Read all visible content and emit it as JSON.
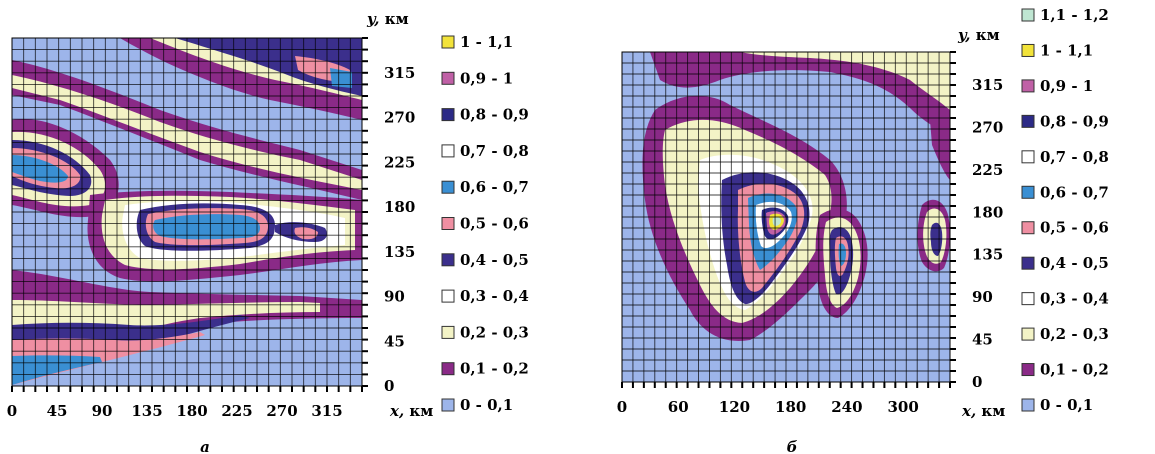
{
  "chart_data": [
    {
      "type": "heatmap",
      "panel_label": "а",
      "xlabel_var": "x,",
      "xlabel_unit": "км",
      "ylabel_var": "y,",
      "ylabel_unit": "км",
      "xlim": [
        0,
        350
      ],
      "ylim": [
        0,
        350
      ],
      "x_ticks": [
        "0",
        "45",
        "90",
        "135",
        "180",
        "225",
        "270",
        "315"
      ],
      "x_tick_values": [
        0,
        45,
        90,
        135,
        180,
        225,
        270,
        315
      ],
      "y_ticks": [
        "0",
        "45",
        "90",
        "135",
        "180",
        "225",
        "270",
        "315"
      ],
      "y_tick_values": [
        0,
        45,
        90,
        135,
        180,
        225,
        270,
        315
      ],
      "grid": true,
      "legend_position": "right",
      "legend": [
        {
          "label": "1 - 1,1",
          "color": "#f2e33a"
        },
        {
          "label": "0,9 - 1",
          "color": "#c060a6"
        },
        {
          "label": "0,8 - 0,9",
          "color": "#2c2a86"
        },
        {
          "label": "0,7 - 0,8",
          "color": "#ffffff"
        },
        {
          "label": "0,6 - 0,7",
          "color": "#3a8fd3"
        },
        {
          "label": "0,5 - 0,6",
          "color": "#ef8fa2"
        },
        {
          "label": "0,4 - 0,5",
          "color": "#3b2f8c"
        },
        {
          "label": "0,3 - 0,4",
          "color": "#ffffff"
        },
        {
          "label": "0,2 - 0,3",
          "color": "#f3f3c6"
        },
        {
          "label": "0,1 - 0,2",
          "color": "#8a2a87"
        },
        {
          "label": "0 - 0,1",
          "color": "#9db5ea"
        }
      ]
    },
    {
      "type": "heatmap",
      "panel_label": "б",
      "xlabel_var": "x,",
      "xlabel_unit": "км",
      "ylabel_var": "y,",
      "ylabel_unit": "км",
      "xlim": [
        0,
        350
      ],
      "ylim": [
        0,
        350
      ],
      "x_ticks": [
        "0",
        "60",
        "120",
        "180",
        "240",
        "300"
      ],
      "x_tick_values": [
        0,
        60,
        120,
        180,
        240,
        300
      ],
      "y_ticks": [
        "0",
        "45",
        "90",
        "135",
        "180",
        "225",
        "270",
        "315"
      ],
      "y_tick_values": [
        0,
        45,
        90,
        135,
        180,
        225,
        270,
        315
      ],
      "grid": true,
      "legend_position": "right",
      "legend": [
        {
          "label": "1,1 - 1,2",
          "color": "#bfe6d2"
        },
        {
          "label": "1 - 1,1",
          "color": "#f2e33a"
        },
        {
          "label": "0,9 - 1",
          "color": "#c060a6"
        },
        {
          "label": "0,8 - 0,9",
          "color": "#2c2a86"
        },
        {
          "label": "0,7 - 0,8",
          "color": "#ffffff"
        },
        {
          "label": "0,6 - 0,7",
          "color": "#3a8fd3"
        },
        {
          "label": "0,5 - 0,6",
          "color": "#ef8fa2"
        },
        {
          "label": "0,4 - 0,5",
          "color": "#3b2f8c"
        },
        {
          "label": "0,3 - 0,4",
          "color": "#ffffff"
        },
        {
          "label": "0,2 - 0,3",
          "color": "#f3f3c6"
        },
        {
          "label": "0,1 - 0,2",
          "color": "#8a2a87"
        },
        {
          "label": "0 - 0,1",
          "color": "#9db5ea"
        }
      ]
    }
  ]
}
